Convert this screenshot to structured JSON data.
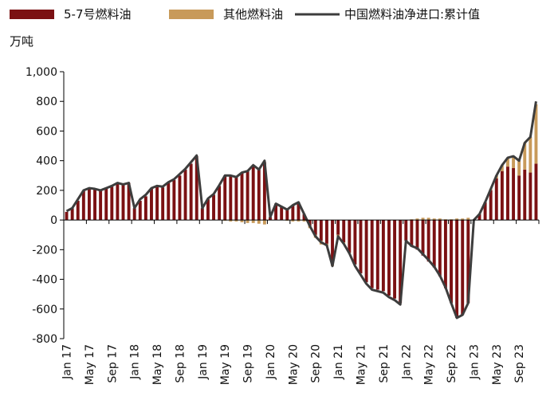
{
  "chart_data": {
    "type": "bar",
    "unit_label": "万吨",
    "title": "",
    "xlabel": "",
    "ylabel": "",
    "ylim": [
      -800,
      1000
    ],
    "y_ticks": [
      -800,
      -600,
      -400,
      -200,
      0,
      200,
      400,
      600,
      800,
      1000
    ],
    "y_tick_labels": [
      "-800",
      "-600",
      "-400",
      "-200",
      "0",
      "200",
      "400",
      "600",
      "800",
      "1,000"
    ],
    "x_tick_labels": [
      "Jan 17",
      "May 17",
      "Sep 17",
      "Jan 18",
      "May 18",
      "Sep 18",
      "Jan 19",
      "May 19",
      "Sep 19",
      "Jan 20",
      "May 20",
      "Sep 20",
      "Jan 21",
      "May 21",
      "Sep 21",
      "Jan 22",
      "May 22",
      "Sep 22",
      "Jan 23",
      "May 23",
      "Sep 23"
    ],
    "grid": false,
    "legend_position": "top",
    "colors": {
      "fuel57": "#7b1113",
      "other": "#c89a5a",
      "line": "#3d3d3d"
    },
    "categories": [
      "2017-01",
      "2017-02",
      "2017-03",
      "2017-04",
      "2017-05",
      "2017-06",
      "2017-07",
      "2017-08",
      "2017-09",
      "2017-10",
      "2017-11",
      "2017-12",
      "2018-01",
      "2018-02",
      "2018-03",
      "2018-04",
      "2018-05",
      "2018-06",
      "2018-07",
      "2018-08",
      "2018-09",
      "2018-10",
      "2018-11",
      "2018-12",
      "2019-01",
      "2019-02",
      "2019-03",
      "2019-04",
      "2019-05",
      "2019-06",
      "2019-07",
      "2019-08",
      "2019-09",
      "2019-10",
      "2019-11",
      "2019-12",
      "2020-01",
      "2020-02",
      "2020-03",
      "2020-04",
      "2020-05",
      "2020-06",
      "2020-07",
      "2020-08",
      "2020-09",
      "2020-10",
      "2020-11",
      "2020-12",
      "2021-01",
      "2021-02",
      "2021-03",
      "2021-04",
      "2021-05",
      "2021-06",
      "2021-07",
      "2021-08",
      "2021-09",
      "2021-10",
      "2021-11",
      "2021-12",
      "2022-01",
      "2022-02",
      "2022-03",
      "2022-04",
      "2022-05",
      "2022-06",
      "2022-07",
      "2022-08",
      "2022-09",
      "2022-10",
      "2022-11",
      "2022-12",
      "2023-01",
      "2023-02",
      "2023-03",
      "2023-04",
      "2023-05",
      "2023-06",
      "2023-07",
      "2023-08",
      "2023-09",
      "2023-10",
      "2023-11",
      "2023-12"
    ],
    "series": [
      {
        "name": "5-7号燃料油",
        "kind": "bar",
        "values": [
          55,
          80,
          130,
          200,
          210,
          210,
          200,
          215,
          225,
          245,
          235,
          250,
          80,
          130,
          160,
          210,
          230,
          220,
          250,
          270,
          300,
          340,
          380,
          430,
          80,
          140,
          170,
          230,
          300,
          300,
          290,
          320,
          330,
          370,
          340,
          390,
          20,
          110,
          90,
          70,
          100,
          120,
          40,
          -40,
          -100,
          -140,
          -160,
          -300,
          -100,
          -150,
          -220,
          -300,
          -360,
          -420,
          -460,
          -470,
          -480,
          -510,
          -530,
          -560,
          -140,
          -180,
          -200,
          -240,
          -280,
          -320,
          -380,
          -460,
          -560,
          -660,
          -640,
          -560,
          0,
          40,
          120,
          200,
          280,
          330,
          360,
          350,
          300,
          340,
          320,
          380
        ]
      },
      {
        "name": "其他燃料油",
        "kind": "bar",
        "values": [
          0,
          0,
          0,
          0,
          0,
          0,
          0,
          0,
          0,
          0,
          0,
          0,
          0,
          0,
          0,
          0,
          0,
          0,
          0,
          0,
          0,
          0,
          0,
          0,
          0,
          0,
          0,
          0,
          -5,
          -10,
          -10,
          -15,
          -20,
          -20,
          -25,
          -30,
          0,
          0,
          0,
          -5,
          -10,
          -10,
          -10,
          -15,
          -20,
          -25,
          -15,
          -10,
          -10,
          -10,
          -5,
          0,
          0,
          0,
          0,
          0,
          0,
          0,
          0,
          0,
          0,
          5,
          10,
          15,
          15,
          10,
          10,
          5,
          5,
          10,
          10,
          15,
          0,
          0,
          0,
          10,
          20,
          40,
          60,
          80,
          100,
          180,
          240,
          400
        ]
      },
      {
        "name": "中国燃料油净进口:累计值",
        "kind": "line",
        "values": [
          60,
          80,
          140,
          200,
          215,
          210,
          200,
          215,
          230,
          250,
          240,
          250,
          80,
          140,
          170,
          215,
          230,
          225,
          255,
          275,
          310,
          345,
          390,
          435,
          80,
          145,
          175,
          235,
          300,
          300,
          290,
          320,
          330,
          370,
          340,
          400,
          20,
          110,
          90,
          70,
          100,
          120,
          40,
          -40,
          -110,
          -150,
          -170,
          -310,
          -110,
          -160,
          -225,
          -310,
          -370,
          -430,
          -470,
          -480,
          -490,
          -520,
          -540,
          -570,
          -140,
          -175,
          -190,
          -230,
          -270,
          -315,
          -375,
          -455,
          -560,
          -660,
          -640,
          -560,
          0,
          40,
          120,
          210,
          300,
          370,
          420,
          430,
          400,
          520,
          560,
          800
        ]
      }
    ]
  }
}
